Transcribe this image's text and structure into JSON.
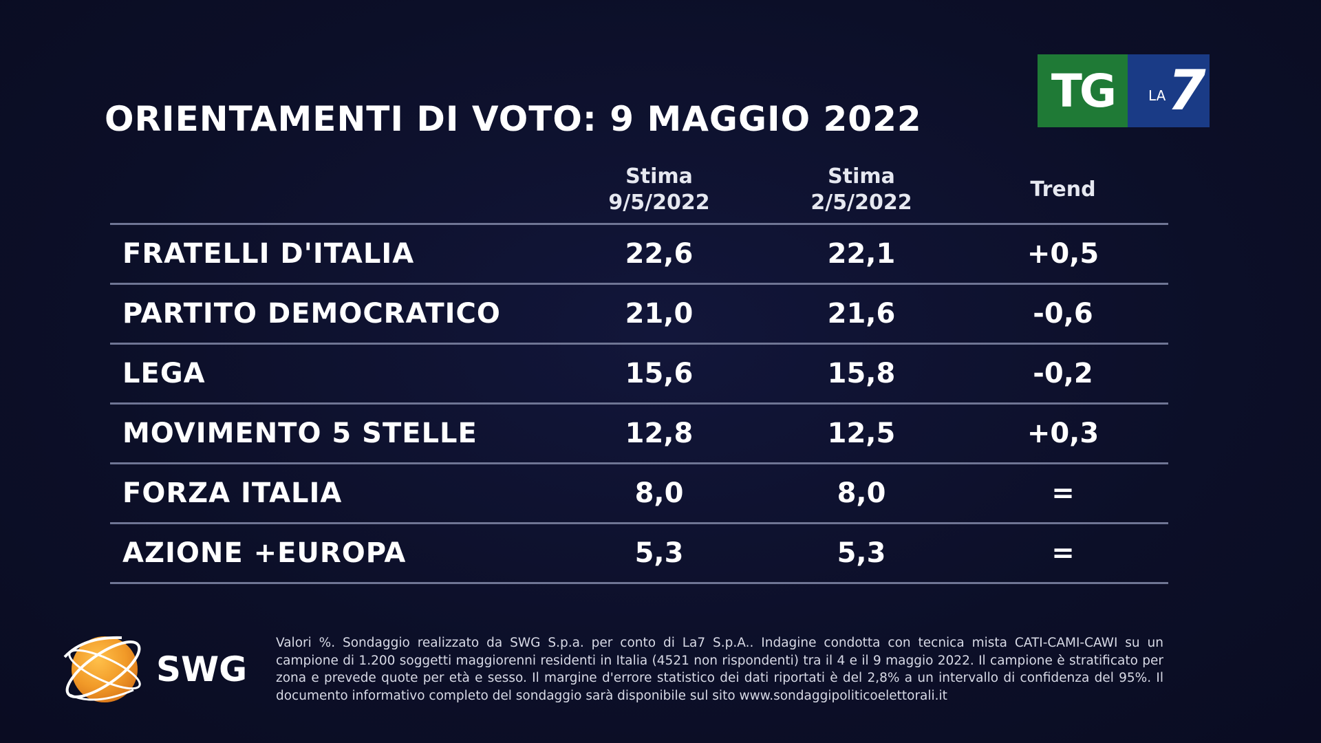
{
  "title": "ORIENTAMENTI DI VOTO: 9 MAGGIO 2022",
  "logo": {
    "tg": "TG",
    "la": "LA",
    "seven": "7"
  },
  "swg_logo": {
    "text": "SWG"
  },
  "chart_data": {
    "type": "table",
    "title": "ORIENTAMENTI DI VOTO: 9 MAGGIO 2022",
    "columns": [
      {
        "line1": "Stima",
        "line2": "9/5/2022"
      },
      {
        "line1": "Stima",
        "line2": "2/5/2022"
      },
      {
        "line1": "Trend",
        "line2": ""
      }
    ],
    "rows": [
      {
        "party": "FRATELLI D'ITALIA",
        "current": "22,6",
        "previous": "22,1",
        "trend": "+0,5"
      },
      {
        "party": "PARTITO DEMOCRATICO",
        "current": "21,0",
        "previous": "21,6",
        "trend": "-0,6"
      },
      {
        "party": "LEGA",
        "current": "15,6",
        "previous": "15,8",
        "trend": "-0,2"
      },
      {
        "party": "MOVIMENTO 5 STELLE",
        "current": "12,8",
        "previous": "12,5",
        "trend": "+0,3"
      },
      {
        "party": "FORZA ITALIA",
        "current": "8,0",
        "previous": "8,0",
        "trend": "="
      },
      {
        "party": "AZIONE +EUROPA",
        "current": "5,3",
        "previous": "5,3",
        "trend": "="
      }
    ]
  },
  "footnote": "Valori %. Sondaggio realizzato da SWG S.p.a. per conto di La7 S.p.A.. Indagine condotta con tecnica mista CATI-CAMI-CAWI su un campione di 1.200 soggetti maggiorenni residenti in Italia (4521 non rispondenti) tra il 4 e il 9 maggio 2022. Il campione è stratificato per zona e prevede quote per età e sesso. Il margine d'errore statistico dei dati riportati è del 2,8% a un intervallo di confidenza del 95%. Il documento informativo completo del sondaggio sarà disponibile sul sito www.sondaggipoliticoelettorali.it",
  "colors": {
    "background": "#0c0f28",
    "rule": "#6f7594",
    "tg_green": "#1f7a36",
    "la7_blue": "#1a3b86",
    "swg_orange": "#f19a28"
  }
}
